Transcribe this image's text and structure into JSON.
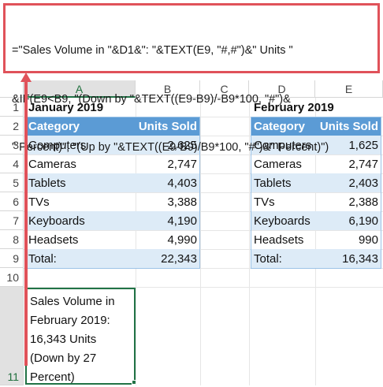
{
  "formula": {
    "lines": [
      "=\"Sales Volume in \"&D1&\": \"&TEXT(E9, \"#,#\")&\" Units \"",
      "&IF(E9<B9, \"(Down by \"&TEXT((E9-B9)/-B9*100, \"#\")&",
      "\" Percent)\", \"(Up by \"&TEXT((E9-B9)/B9*100, \"#\")&\" Percent)\")"
    ]
  },
  "columns": [
    "A",
    "B",
    "C",
    "D",
    "E"
  ],
  "rows": [
    "1",
    "2",
    "3",
    "4",
    "5",
    "6",
    "7",
    "8",
    "9",
    "10",
    "11"
  ],
  "january": {
    "title": "January 2019",
    "header": [
      "Category",
      "Units Sold"
    ],
    "rows": [
      [
        "Computers",
        "2,625"
      ],
      [
        "Cameras",
        "2,747"
      ],
      [
        "Tablets",
        "4,403"
      ],
      [
        "TVs",
        "3,388"
      ],
      [
        "Keyboards",
        "4,190"
      ],
      [
        "Headsets",
        "4,990"
      ]
    ],
    "total": [
      "Total:",
      "22,343"
    ]
  },
  "february": {
    "title": "February 2019",
    "header": [
      "Category",
      "Units Sold"
    ],
    "rows": [
      [
        "Computers",
        "1,625"
      ],
      [
        "Cameras",
        "2,747"
      ],
      [
        "Tablets",
        "2,403"
      ],
      [
        "TVs",
        "2,388"
      ],
      [
        "Keyboards",
        "6,190"
      ],
      [
        "Headsets",
        "990"
      ]
    ],
    "total": [
      "Total:",
      "16,343"
    ]
  },
  "result_cell": {
    "text": "Sales Volume in\nFebruary 2019:\n16,343 Units\n(Down by 27\nPercent)"
  },
  "colors": {
    "callout": "#e0525a",
    "table_header": "#5b9bd5",
    "table_band": "#ddebf7",
    "selection": "#217346"
  }
}
